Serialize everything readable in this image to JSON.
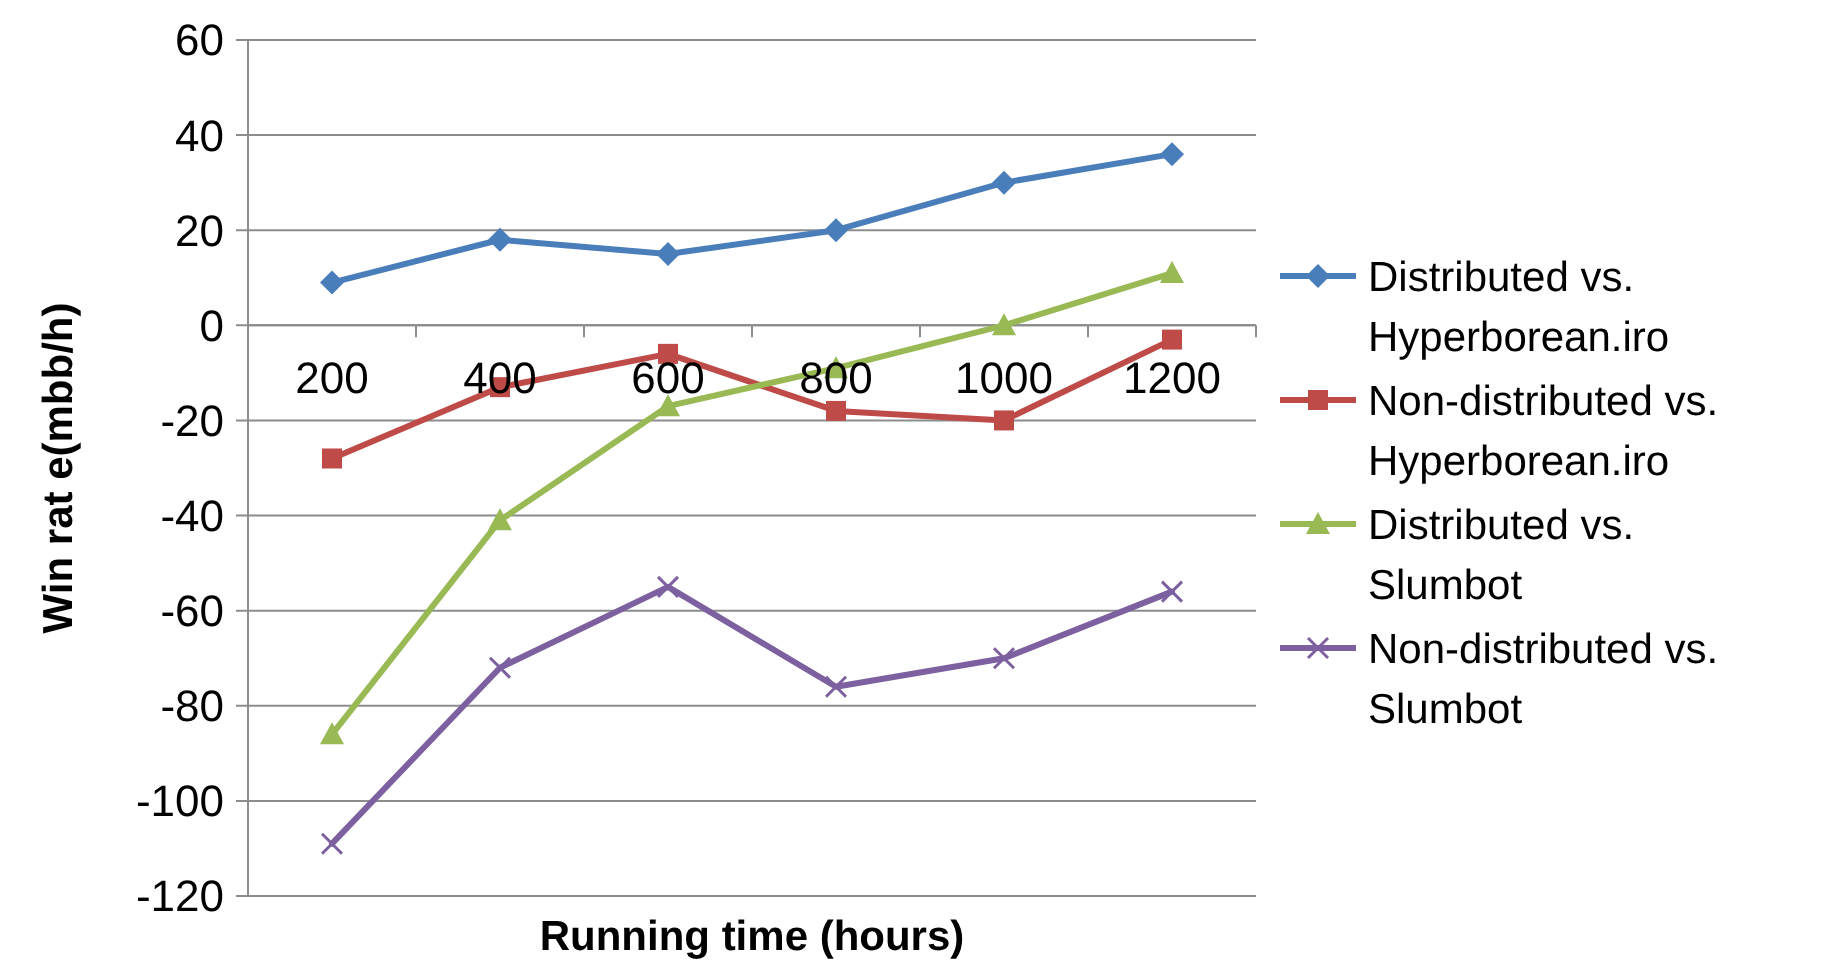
{
  "chart_data": {
    "type": "line",
    "xlabel": "Running time (hours)",
    "ylabel": "Win rat e(mbb/h)",
    "categories": [
      "200",
      "400",
      "600",
      "800",
      "1000",
      "1200"
    ],
    "ylim": [
      -120,
      60
    ],
    "yticks": [
      -120,
      -100,
      -80,
      -60,
      -40,
      -20,
      0,
      20,
      40,
      60
    ],
    "grid": "y",
    "legend": "right",
    "series": [
      {
        "name": "Distributed vs. Hyperborean.iro",
        "color": "#4a7ebb",
        "marker": "diamond",
        "values": [
          9,
          18,
          15,
          20,
          30,
          36
        ]
      },
      {
        "name": "Non-distributed vs. Hyperborean.iro",
        "color": "#be4b48",
        "marker": "square",
        "values": [
          -28,
          -13,
          -6,
          -18,
          -20,
          -3
        ]
      },
      {
        "name": "Distributed vs. Slumbot",
        "color": "#98b954",
        "marker": "triangle",
        "values": [
          -86,
          -41,
          -17,
          -9,
          0,
          11
        ]
      },
      {
        "name": "Non-distributed vs. Slumbot",
        "color": "#7d60a0",
        "marker": "cross",
        "values": [
          -109,
          -72,
          -55,
          -76,
          -70,
          -56
        ]
      }
    ]
  }
}
